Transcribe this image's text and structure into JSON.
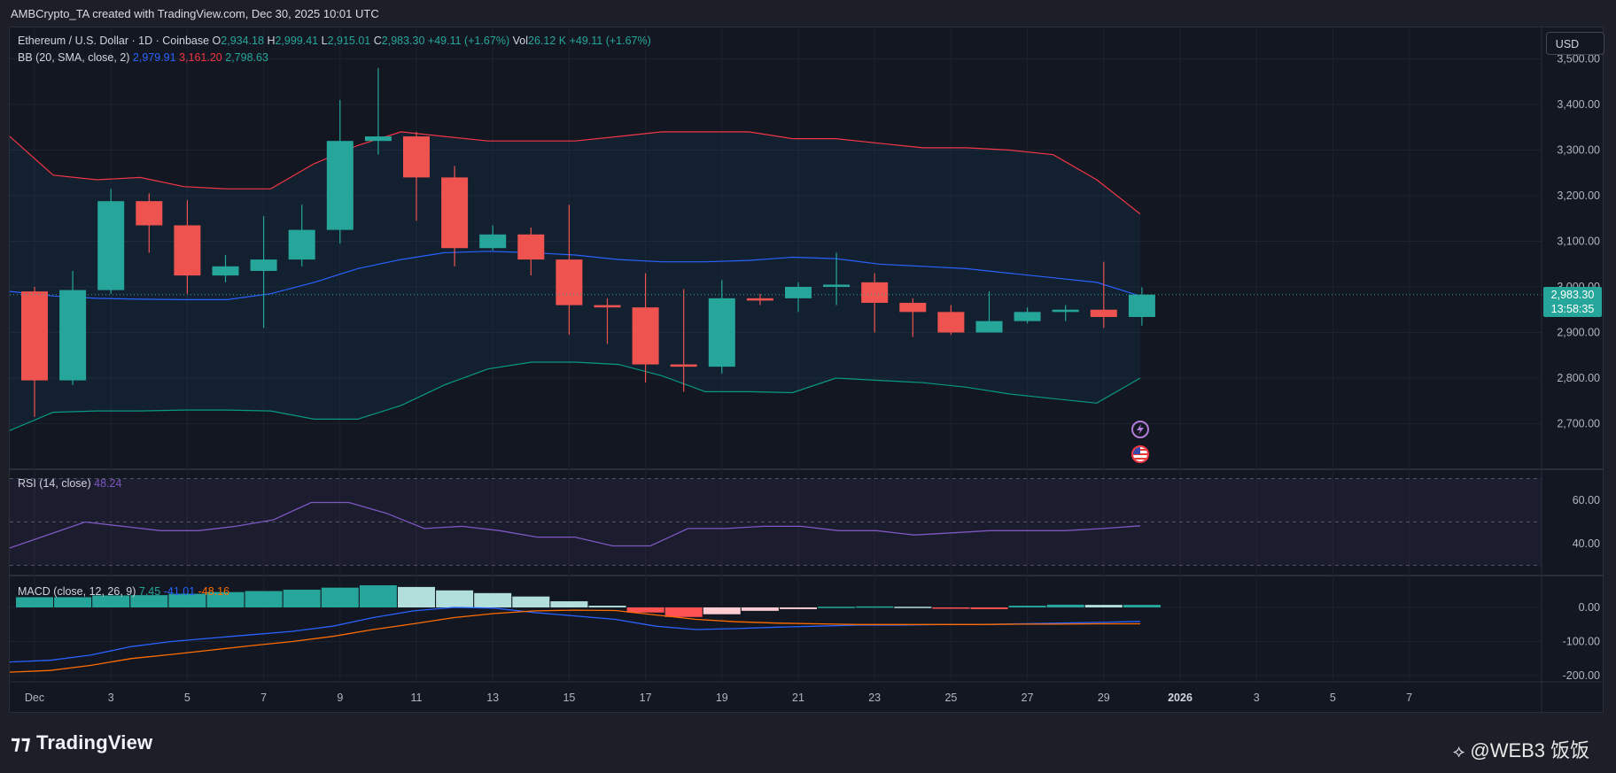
{
  "header": {
    "credit": "AMBCrypto_TA created with TradingView.com, Dec 30, 2025 10:01 UTC"
  },
  "legend": {
    "symbol": "Ethereum / U.S. Dollar · 1D · Coinbase",
    "o_label": "O",
    "o_value": "2,934.18",
    "h_label": "H",
    "h_value": "2,999.41",
    "l_label": "L",
    "l_value": "2,915.01",
    "c_label": "C",
    "c_value": "2,983.30",
    "change": "+49.11 (+1.67%)",
    "vol_label": "Vol",
    "vol_value": "26.12 K",
    "vol_change": "+49.11 (+1.67%)",
    "bb_label": "BB (20, SMA, close, 2)",
    "bb_basis": "2,979.91",
    "bb_upper": "3,161.20",
    "bb_lower": "2,798.63",
    "rsi_label": "RSI (14, close)",
    "rsi_value": "48.24",
    "macd_label": "MACD (close, 12, 26, 9)",
    "macd_hist": "7.45",
    "macd_line": "-41.01",
    "macd_signal": "-48.16"
  },
  "toolbar": {
    "currency_button": "USD"
  },
  "price_tag": {
    "price": "2,983.30",
    "countdown": "13:58:35"
  },
  "footer": {
    "logo_text": "TradingView",
    "watermark": "@WEB3 饭饭"
  },
  "colors": {
    "up": "#26a69a",
    "down": "#ef5350",
    "bb_upper": "#f23645",
    "bb_basis": "#2962ff",
    "bb_lower": "#089981",
    "rsi": "#7e57c2",
    "macd": "#2962ff",
    "signal": "#ff6d00"
  },
  "chart_data": {
    "type": "candlestick",
    "x_ticks": [
      "Dec",
      "3",
      "5",
      "7",
      "9",
      "11",
      "13",
      "15",
      "17",
      "19",
      "21",
      "23",
      "25",
      "27",
      "29",
      "2026",
      "3",
      "5",
      "7"
    ],
    "price_axis_ticks": [
      "3,500.00",
      "3,400.00",
      "3,300.00",
      "3,200.00",
      "3,100.00",
      "3,000.00",
      "2,900.00",
      "2,800.00",
      "2,700.00"
    ],
    "price_range": [
      2620,
      3500
    ],
    "candles": [
      {
        "date": "Dec 1",
        "o": 2990,
        "h": 3000,
        "l": 2715,
        "c": 2795
      },
      {
        "date": "Dec 2",
        "o": 2795,
        "h": 3035,
        "l": 2785,
        "c": 2993
      },
      {
        "date": "Dec 3",
        "o": 2993,
        "h": 3215,
        "l": 2985,
        "c": 3188
      },
      {
        "date": "Dec 4",
        "o": 3188,
        "h": 3205,
        "l": 3075,
        "c": 3135
      },
      {
        "date": "Dec 5",
        "o": 3135,
        "h": 3190,
        "l": 2985,
        "c": 3025
      },
      {
        "date": "Dec 6",
        "o": 3025,
        "h": 3070,
        "l": 3010,
        "c": 3045
      },
      {
        "date": "Dec 7",
        "o": 3035,
        "h": 3155,
        "l": 2910,
        "c": 3060
      },
      {
        "date": "Dec 8",
        "o": 3060,
        "h": 3180,
        "l": 3045,
        "c": 3125
      },
      {
        "date": "Dec 9",
        "o": 3125,
        "h": 3410,
        "l": 3095,
        "c": 3320
      },
      {
        "date": "Dec 10",
        "o": 3320,
        "h": 3480,
        "l": 3290,
        "c": 3330
      },
      {
        "date": "Dec 11",
        "o": 3330,
        "h": 3340,
        "l": 3145,
        "c": 3240
      },
      {
        "date": "Dec 12",
        "o": 3240,
        "h": 3265,
        "l": 3045,
        "c": 3085
      },
      {
        "date": "Dec 13",
        "o": 3085,
        "h": 3135,
        "l": 3080,
        "c": 3115
      },
      {
        "date": "Dec 14",
        "o": 3115,
        "h": 3130,
        "l": 3025,
        "c": 3060
      },
      {
        "date": "Dec 15",
        "o": 3060,
        "h": 3180,
        "l": 2895,
        "c": 2960
      },
      {
        "date": "Dec 16",
        "o": 2960,
        "h": 2975,
        "l": 2875,
        "c": 2955
      },
      {
        "date": "Dec 17",
        "o": 2955,
        "h": 3030,
        "l": 2790,
        "c": 2830
      },
      {
        "date": "Dec 18",
        "o": 2830,
        "h": 2995,
        "l": 2770,
        "c": 2825
      },
      {
        "date": "Dec 19",
        "o": 2825,
        "h": 3015,
        "l": 2810,
        "c": 2975
      },
      {
        "date": "Dec 20",
        "o": 2975,
        "h": 2985,
        "l": 2960,
        "c": 2970
      },
      {
        "date": "Dec 21",
        "o": 2975,
        "h": 3010,
        "l": 2945,
        "c": 3000
      },
      {
        "date": "Dec 22",
        "o": 3000,
        "h": 3075,
        "l": 2960,
        "c": 3005
      },
      {
        "date": "Dec 23",
        "o": 3010,
        "h": 3030,
        "l": 2900,
        "c": 2965
      },
      {
        "date": "Dec 24",
        "o": 2965,
        "h": 2975,
        "l": 2890,
        "c": 2945
      },
      {
        "date": "Dec 25",
        "o": 2945,
        "h": 2960,
        "l": 2895,
        "c": 2900
      },
      {
        "date": "Dec 26",
        "o": 2900,
        "h": 2990,
        "l": 2900,
        "c": 2925
      },
      {
        "date": "Dec 27",
        "o": 2925,
        "h": 2955,
        "l": 2920,
        "c": 2945
      },
      {
        "date": "Dec 28",
        "o": 2945,
        "h": 2960,
        "l": 2925,
        "c": 2950
      },
      {
        "date": "Dec 29",
        "o": 2950,
        "h": 3055,
        "l": 2910,
        "c": 2934
      },
      {
        "date": "Dec 30",
        "o": 2934,
        "h": 2999,
        "l": 2915,
        "c": 2983
      }
    ],
    "bollinger": {
      "upper": [
        3330,
        3245,
        3235,
        3240,
        3220,
        3215,
        3215,
        3270,
        3310,
        3340,
        3330,
        3320,
        3320,
        3320,
        3330,
        3340,
        3340,
        3340,
        3325,
        3325,
        3315,
        3305,
        3305,
        3300,
        3290,
        3235,
        3160
      ],
      "basis": [
        2990,
        2980,
        2975,
        2973,
        2972,
        2972,
        2985,
        3010,
        3040,
        3060,
        3075,
        3078,
        3075,
        3070,
        3060,
        3055,
        3055,
        3058,
        3065,
        3062,
        3050,
        3045,
        3040,
        3030,
        3020,
        3010,
        2980
      ],
      "lower": [
        2685,
        2725,
        2728,
        2728,
        2730,
        2730,
        2728,
        2710,
        2710,
        2740,
        2785,
        2820,
        2835,
        2835,
        2830,
        2805,
        2770,
        2770,
        2768,
        2800,
        2795,
        2790,
        2780,
        2765,
        2755,
        2745,
        2800
      ]
    },
    "rsi": {
      "axis_ticks": [
        "60.00",
        "40.00"
      ],
      "range": [
        30,
        70
      ],
      "values": [
        38,
        44,
        50,
        48,
        46,
        46,
        48,
        51,
        59,
        59,
        54,
        47,
        48,
        46,
        43,
        43,
        39,
        39,
        47,
        47,
        48,
        48,
        46,
        46,
        44,
        45,
        46,
        46,
        46,
        47,
        48.24
      ]
    },
    "macd": {
      "axis_ticks": [
        "0.00",
        "-100.00",
        "-200.00"
      ],
      "range": [
        -215,
        40
      ],
      "histogram": [
        30,
        30,
        35,
        36,
        40,
        45,
        48,
        52,
        58,
        65,
        60,
        50,
        42,
        32,
        18,
        5,
        -15,
        -28,
        -20,
        -10,
        -5,
        2,
        3,
        2,
        -3,
        -5,
        5,
        8,
        7.45,
        7.45
      ],
      "macd_line": [
        -160,
        -155,
        -140,
        -115,
        -100,
        -90,
        -80,
        -70,
        -55,
        -30,
        -10,
        0,
        -2,
        -15,
        -25,
        -35,
        -55,
        -65,
        -62,
        -58,
        -55,
        -52,
        -52,
        -50,
        -50,
        -48,
        -46,
        -44,
        -41.01
      ],
      "signal_line": [
        -190,
        -185,
        -170,
        -150,
        -138,
        -125,
        -112,
        -100,
        -85,
        -65,
        -48,
        -30,
        -18,
        -10,
        -8,
        -9,
        -22,
        -35,
        -42,
        -46,
        -48,
        -50,
        -50,
        -50,
        -50,
        -49,
        -49,
        -48,
        -48.16
      ]
    }
  }
}
